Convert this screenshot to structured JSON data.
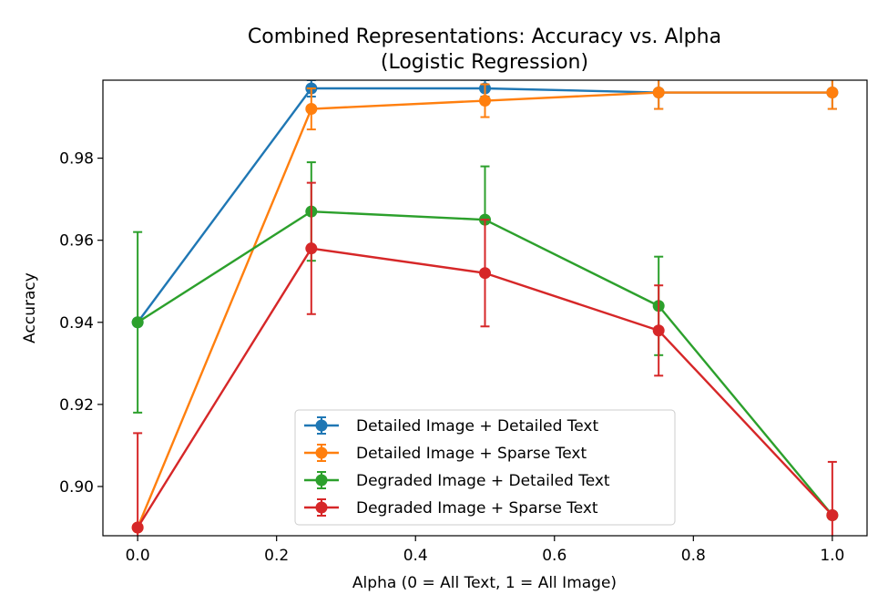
{
  "chart_data": {
    "type": "line",
    "title": "Combined Representations: Accuracy vs. Alpha",
    "subtitle": "(Logistic Regression)",
    "xlabel": "Alpha (0 = All Text, 1 = All Image)",
    "ylabel": "Accuracy",
    "xlim": [
      -0.05,
      1.05
    ],
    "ylim": [
      0.888,
      0.999
    ],
    "xticks": [
      0.0,
      0.2,
      0.4,
      0.6,
      0.8,
      1.0
    ],
    "xtick_labels": [
      "0.0",
      "0.2",
      "0.4",
      "0.6",
      "0.8",
      "1.0"
    ],
    "yticks": [
      0.9,
      0.92,
      0.94,
      0.96,
      0.98
    ],
    "ytick_labels": [
      "0.90",
      "0.92",
      "0.94",
      "0.96",
      "0.98"
    ],
    "grid": false,
    "legend_position": "lower-center",
    "x": [
      0.0,
      0.25,
      0.5,
      0.75,
      1.0
    ],
    "series": [
      {
        "name": "Detailed Image + Detailed Text",
        "color": "#1f77b4",
        "values": [
          0.94,
          0.997,
          0.997,
          0.996,
          0.996
        ],
        "errors": [
          0.0,
          0.002,
          0.002,
          0.004,
          0.004
        ]
      },
      {
        "name": "Detailed Image + Sparse Text",
        "color": "#ff7f0e",
        "values": [
          0.89,
          0.992,
          0.994,
          0.996,
          0.996
        ],
        "errors": [
          0.0,
          0.005,
          0.004,
          0.004,
          0.004
        ]
      },
      {
        "name": "Degraded Image + Detailed Text",
        "color": "#2ca02c",
        "values": [
          0.94,
          0.967,
          0.965,
          0.944,
          0.893
        ],
        "errors": [
          0.022,
          0.012,
          0.013,
          0.012,
          0.0
        ]
      },
      {
        "name": "Degraded Image + Sparse Text",
        "color": "#d62728",
        "values": [
          0.89,
          0.958,
          0.952,
          0.938,
          0.893
        ],
        "errors": [
          0.023,
          0.016,
          0.013,
          0.011,
          0.013
        ]
      }
    ]
  }
}
